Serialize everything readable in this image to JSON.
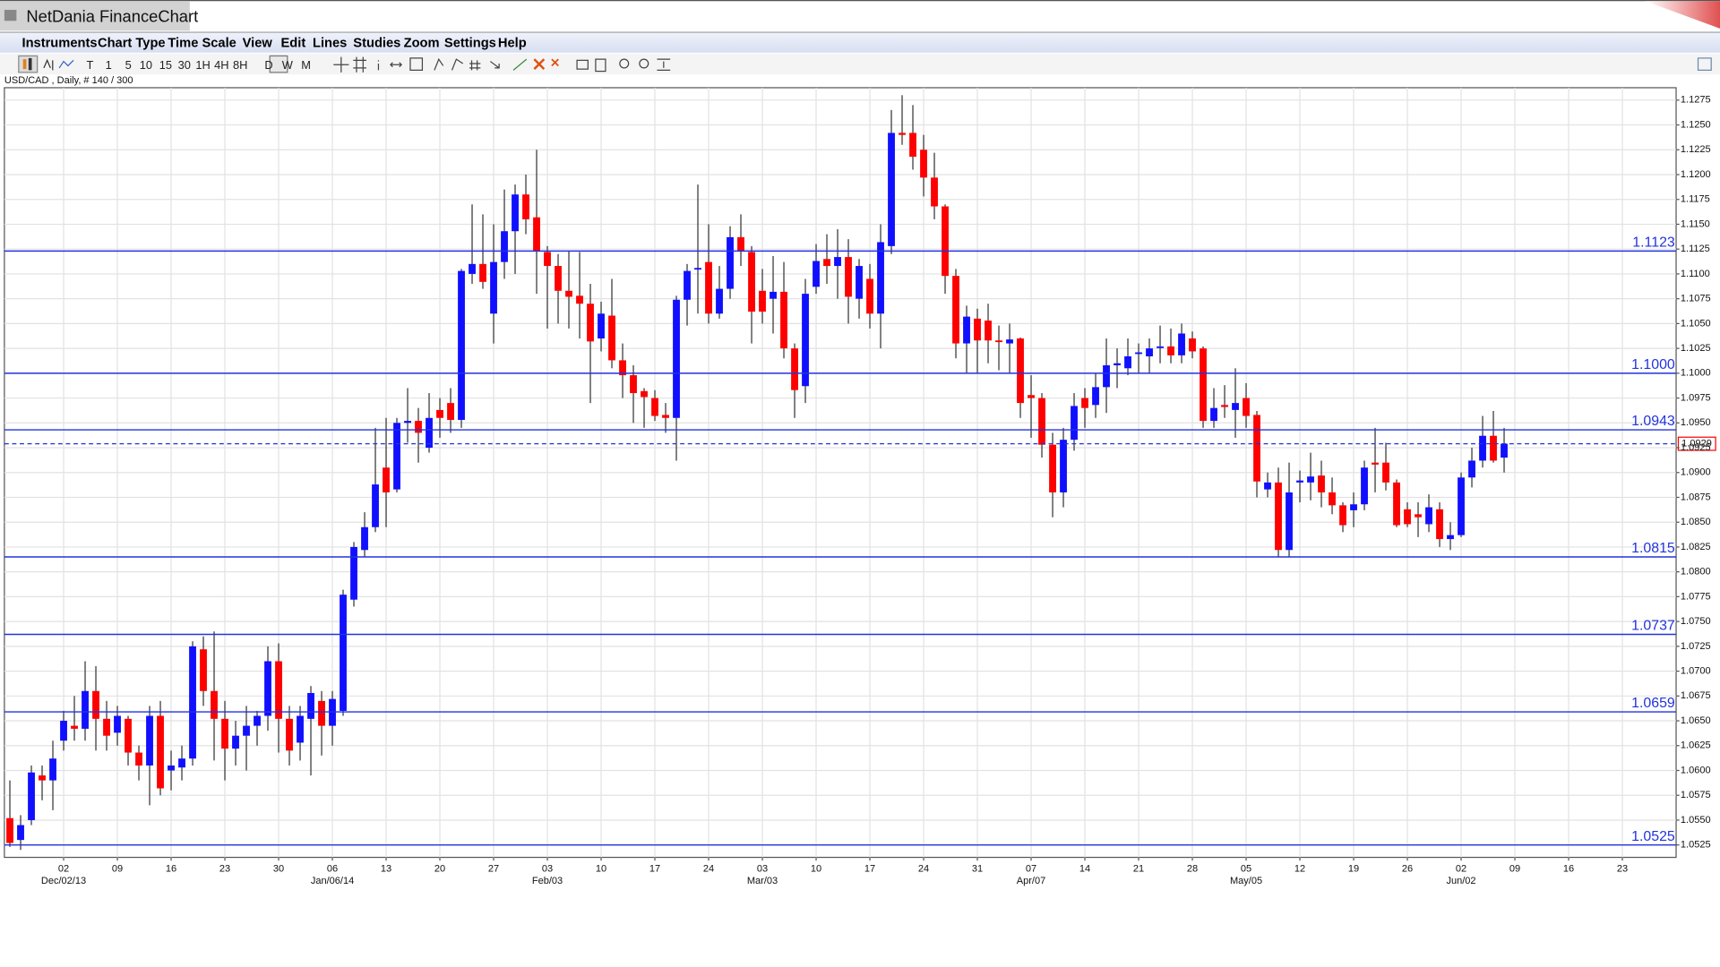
{
  "app": {
    "title": "NetDania FinanceChart",
    "menu": [
      "Instruments",
      "Chart Type",
      "Time Scale",
      "View",
      "Edit",
      "Lines",
      "Studies",
      "Zoom",
      "Settings",
      "Help"
    ],
    "toolbar": [
      "T",
      "1",
      "5",
      "10",
      "15",
      "30",
      "1H",
      "4H",
      "8H",
      "D",
      "W",
      "M"
    ]
  },
  "chart_data": {
    "type": "candlestick",
    "title": "USD/CAD , Daily, # 140 / 300",
    "up_color": "#1010ff",
    "down_color": "#ff0000",
    "level_color": "#2233dd",
    "grid": true,
    "ylim": [
      1.05125,
      1.12875
    ],
    "yticks": [
      1.0525,
      {
        "value": 1.055,
        "label": "1.0550"
      },
      1.0575,
      {
        "value": 1.06,
        "label": "1.0600"
      },
      1.0625,
      {
        "value": 1.065,
        "label": "1.0650"
      },
      1.0675,
      {
        "value": 1.07,
        "label": "1.0700"
      },
      1.0725,
      {
        "value": 1.075,
        "label": "1.0750"
      },
      1.0775,
      {
        "value": 1.08,
        "label": "1.0800"
      },
      1.0825,
      {
        "value": 1.085,
        "label": "1.0850"
      },
      1.0875,
      {
        "value": 1.09,
        "label": "1.0900"
      },
      1.0925,
      {
        "value": 1.095,
        "label": "1.0950"
      },
      1.0975,
      {
        "value": 1.1,
        "label": "1.1000"
      },
      1.1025,
      {
        "value": 1.105,
        "label": "1.1050"
      },
      1.1075,
      {
        "value": 1.11,
        "label": "1.1100"
      },
      1.1125,
      {
        "value": 1.115,
        "label": "1.1150"
      },
      1.1175,
      {
        "value": 1.12,
        "label": "1.1200"
      },
      1.1225,
      {
        "value": 1.125,
        "label": "1.1250"
      },
      1.1275
    ],
    "levels": [
      1.1123,
      {
        "value": 1.1,
        "label": "1.1000"
      },
      1.0943,
      1.0815,
      1.0737,
      1.0659,
      1.0525
    ],
    "last_price": 1.0929,
    "categories": [
      null,
      null,
      null,
      null,
      null,
      "02",
      null,
      null,
      null,
      null,
      "09",
      null,
      null,
      null,
      null,
      "16",
      null,
      null,
      null,
      null,
      "23",
      null,
      null,
      null,
      null,
      "30",
      null,
      null,
      null,
      null,
      "06",
      null,
      null,
      null,
      null,
      "13",
      null,
      null,
      null,
      null,
      "20",
      null,
      null,
      null,
      null,
      "27",
      null,
      null,
      null,
      null,
      "03",
      null,
      null,
      null,
      null,
      "10",
      null,
      null,
      null,
      null,
      "17",
      null,
      null,
      null,
      null,
      "24",
      null,
      null,
      null,
      null,
      "03",
      null,
      null,
      null,
      null,
      "10",
      null,
      null,
      null,
      null,
      "17",
      null,
      null,
      null,
      null,
      "24",
      null,
      null,
      null,
      null,
      "31",
      null,
      null,
      null,
      null,
      "07",
      null,
      null,
      null,
      null,
      "14",
      null,
      null,
      null,
      null,
      "21",
      null,
      null,
      null,
      null,
      "28",
      null,
      null,
      null,
      null,
      "05",
      null,
      null,
      null,
      null,
      "12",
      null,
      null,
      null,
      null,
      "19",
      null,
      null,
      null,
      null,
      "26",
      null,
      null,
      null,
      null,
      "02",
      null,
      null,
      null,
      null,
      "09",
      null,
      null,
      null,
      null,
      "16",
      null,
      null,
      null,
      null,
      "23",
      null,
      null,
      null,
      null
    ],
    "category_sublabels": [
      null,
      null,
      null,
      null,
      null,
      "Dec/02/13",
      null,
      null,
      null,
      null,
      null,
      null,
      null,
      null,
      null,
      null,
      null,
      null,
      null,
      null,
      null,
      null,
      null,
      null,
      null,
      null,
      null,
      null,
      null,
      null,
      "Jan/06/14",
      null,
      null,
      null,
      null,
      null,
      null,
      null,
      null,
      null,
      null,
      null,
      null,
      null,
      null,
      null,
      null,
      null,
      null,
      null,
      "Feb/03",
      null,
      null,
      null,
      null,
      null,
      null,
      null,
      null,
      null,
      null,
      null,
      null,
      null,
      null,
      null,
      null,
      null,
      null,
      null,
      "Mar/03",
      null,
      null,
      null,
      null,
      null,
      null,
      null,
      null,
      null,
      null,
      null,
      null,
      null,
      null,
      null,
      null,
      null,
      null,
      null,
      null,
      null,
      null,
      null,
      null,
      "Apr/07",
      null,
      null,
      null,
      null,
      null,
      null,
      null,
      null,
      null,
      null,
      null,
      null,
      null,
      null,
      null,
      null,
      null,
      null,
      null,
      "May/05",
      null,
      null,
      null,
      null,
      null,
      null,
      null,
      null,
      null,
      null,
      null,
      null,
      null,
      null,
      null,
      null,
      null,
      null,
      null,
      "Jun/02",
      null,
      null,
      null,
      null,
      null,
      null,
      null,
      null,
      null,
      null,
      null,
      null,
      null,
      null,
      null,
      null,
      null,
      null,
      null
    ],
    "ohlc": [
      [
        1.0552,
        1.059,
        1.0523,
        1.0527
      ],
      [
        1.053,
        1.0555,
        1.052,
        1.0545
      ],
      [
        1.055,
        1.0605,
        1.0545,
        1.0598
      ],
      [
        1.0595,
        1.0605,
        1.057,
        1.059
      ],
      [
        1.059,
        1.063,
        1.056,
        1.0612
      ],
      [
        1.063,
        1.066,
        1.062,
        1.065
      ],
      [
        1.0645,
        1.0675,
        1.063,
        1.0642
      ],
      [
        1.0642,
        1.071,
        1.063,
        1.068
      ],
      [
        1.068,
        1.0705,
        1.062,
        1.0652
      ],
      [
        1.0652,
        1.067,
        1.062,
        1.0635
      ],
      [
        1.0638,
        1.0665,
        1.0625,
        1.0655
      ],
      [
        1.0652,
        1.0655,
        1.0605,
        1.0618
      ],
      [
        1.0618,
        1.0625,
        1.059,
        1.0605
      ],
      [
        1.0605,
        1.0665,
        1.0565,
        1.0655
      ],
      [
        1.0655,
        1.067,
        1.0575,
        1.0582
      ],
      [
        1.06,
        1.062,
        1.058,
        1.0605
      ],
      [
        1.0603,
        1.0625,
        1.059,
        1.0612
      ],
      [
        1.0612,
        1.073,
        1.0605,
        1.0725
      ],
      [
        1.0722,
        1.0735,
        1.0665,
        1.068
      ],
      [
        1.068,
        1.074,
        1.061,
        1.0652
      ],
      [
        1.0652,
        1.067,
        1.059,
        1.0622
      ],
      [
        1.0622,
        1.065,
        1.0605,
        1.0635
      ],
      [
        1.0635,
        1.0665,
        1.06,
        1.0645
      ],
      [
        1.0645,
        1.066,
        1.0625,
        1.0655
      ],
      [
        1.0655,
        1.0725,
        1.064,
        1.071
      ],
      [
        1.071,
        1.0728,
        1.0618,
        1.0652
      ],
      [
        1.0652,
        1.0665,
        1.0605,
        1.062
      ],
      [
        1.0628,
        1.0665,
        1.061,
        1.0655
      ],
      [
        1.0652,
        1.0685,
        1.0595,
        1.0678
      ],
      [
        1.067,
        1.068,
        1.0615,
        1.0645
      ],
      [
        1.0645,
        1.068,
        1.0625,
        1.0672
      ],
      [
        1.066,
        1.0782,
        1.0655,
        1.0777
      ],
      [
        1.0772,
        1.083,
        1.0765,
        1.0825
      ],
      [
        1.0822,
        1.086,
        1.0815,
        1.0845
      ],
      [
        1.0845,
        1.0945,
        1.084,
        1.0888
      ],
      [
        1.0905,
        1.0955,
        1.0845,
        1.088
      ],
      [
        1.0883,
        1.0955,
        1.088,
        1.095
      ],
      [
        1.095,
        1.0985,
        1.093,
        1.0952
      ],
      [
        1.0952,
        1.0965,
        1.091,
        1.094
      ],
      [
        1.0925,
        1.098,
        1.092,
        1.0955
      ],
      [
        1.0963,
        1.0975,
        1.0935,
        1.0955
      ],
      [
        1.097,
        1.0985,
        1.094,
        1.0953
      ],
      [
        1.0953,
        1.1105,
        1.0945,
        1.1103
      ],
      [
        1.11,
        1.117,
        1.109,
        1.111
      ],
      [
        1.111,
        1.116,
        1.1085,
        1.1092
      ],
      [
        1.106,
        1.115,
        1.103,
        1.1112
      ],
      [
        1.1112,
        1.1185,
        1.1095,
        1.1143
      ],
      [
        1.1143,
        1.119,
        1.11,
        1.118
      ],
      [
        1.118,
        1.12,
        1.114,
        1.1155
      ],
      [
        1.1157,
        1.1225,
        1.108,
        1.1123
      ],
      [
        1.1122,
        1.1128,
        1.1045,
        1.1108
      ],
      [
        1.1108,
        1.112,
        1.105,
        1.1083
      ],
      [
        1.1083,
        1.1123,
        1.1045,
        1.1077
      ],
      [
        1.1078,
        1.1122,
        1.1035,
        1.107
      ],
      [
        1.107,
        1.109,
        1.097,
        1.1032
      ],
      [
        1.1035,
        1.1072,
        1.1022,
        1.106
      ],
      [
        1.1058,
        1.1095,
        1.1005,
        1.1013
      ],
      [
        1.1013,
        1.103,
        1.0975,
        1.0998
      ],
      [
        1.0998,
        1.1008,
        1.095,
        1.098
      ],
      [
        1.0982,
        1.0985,
        1.0945,
        1.0976
      ],
      [
        1.0975,
        1.0983,
        1.0952,
        1.0957
      ],
      [
        1.0958,
        1.097,
        1.094,
        1.0955
      ],
      [
        1.0955,
        1.1078,
        1.0912,
        1.1074
      ],
      [
        1.1074,
        1.111,
        1.1048,
        1.1103
      ],
      [
        1.1105,
        1.119,
        1.106,
        1.1106
      ],
      [
        1.1112,
        1.115,
        1.105,
        1.106
      ],
      [
        1.106,
        1.1108,
        1.1055,
        1.1085
      ],
      [
        1.1085,
        1.1148,
        1.1075,
        1.1137
      ],
      [
        1.1137,
        1.116,
        1.1108,
        1.1123
      ],
      [
        1.1122,
        1.1128,
        1.103,
        1.1062
      ],
      [
        1.1083,
        1.1105,
        1.105,
        1.1062
      ],
      [
        1.1075,
        1.1118,
        1.104,
        1.1082
      ],
      [
        1.1082,
        1.1112,
        1.1015,
        1.1025
      ],
      [
        1.1025,
        1.103,
        1.0955,
        1.0983
      ],
      [
        1.0987,
        1.1095,
        1.097,
        1.108
      ],
      [
        1.1087,
        1.113,
        1.108,
        1.1113
      ],
      [
        1.1115,
        1.114,
        1.109,
        1.1108
      ],
      [
        1.1108,
        1.1145,
        1.1075,
        1.1117
      ],
      [
        1.1117,
        1.1135,
        1.105,
        1.1077
      ],
      [
        1.1075,
        1.1115,
        1.1055,
        1.1108
      ],
      [
        1.1095,
        1.111,
        1.1045,
        1.106
      ],
      [
        1.106,
        1.115,
        1.1025,
        1.1132
      ],
      [
        1.1128,
        1.1265,
        1.112,
        1.1242
      ],
      [
        1.1242,
        1.128,
        1.123,
        1.124
      ],
      [
        1.1242,
        1.127,
        1.1205,
        1.1218
      ],
      [
        1.1225,
        1.124,
        1.1178,
        1.1197
      ],
      [
        1.1197,
        1.1222,
        1.1155,
        1.1168
      ],
      [
        1.1168,
        1.117,
        1.108,
        1.1098
      ],
      [
        1.1098,
        1.1105,
        1.1015,
        1.103
      ],
      [
        1.103,
        1.1068,
        1.1,
        1.1057
      ],
      [
        1.1055,
        1.1065,
        1.1,
        1.1033
      ],
      [
        1.1053,
        1.107,
        1.101,
        1.1033
      ],
      [
        1.1033,
        1.1048,
        1.1003,
        1.1032
      ],
      [
        1.103,
        1.105,
        1.1,
        1.1034
      ],
      [
        1.1035,
        1.1036,
        1.0955,
        1.097
      ],
      [
        1.0978,
        1.0998,
        1.0935,
        1.0975
      ],
      [
        1.0975,
        1.098,
        1.0915,
        1.0928
      ],
      [
        1.0928,
        1.094,
        1.0855,
        1.088
      ],
      [
        1.088,
        1.0945,
        1.0865,
        1.0933
      ],
      [
        1.0933,
        1.098,
        1.0922,
        1.0967
      ],
      [
        1.0975,
        1.0985,
        1.0945,
        1.0965
      ],
      [
        1.0968,
        1.1,
        1.0955,
        1.0986
      ],
      [
        1.0986,
        1.1035,
        1.096,
        1.1008
      ],
      [
        1.1008,
        1.1025,
        1.0985,
        1.101
      ],
      [
        1.1005,
        1.1035,
        1.0998,
        1.1017
      ],
      [
        1.102,
        1.103,
        1.1,
        1.1021
      ],
      [
        1.1017,
        1.1035,
        1.1,
        1.1025
      ],
      [
        1.1026,
        1.1048,
        1.101,
        1.1027
      ],
      [
        1.1027,
        1.1045,
        1.101,
        1.1018
      ],
      [
        1.1018,
        1.105,
        1.101,
        1.104
      ],
      [
        1.1035,
        1.1042,
        1.1015,
        1.1022
      ],
      [
        1.1025,
        1.1027,
        1.0945,
        1.0952
      ],
      [
        1.0952,
        1.0985,
        1.0945,
        1.0965
      ],
      [
        1.0968,
        1.0988,
        1.0955,
        1.0966
      ],
      [
        1.0963,
        1.1005,
        1.0935,
        1.097
      ],
      [
        1.0975,
        1.099,
        1.0945,
        1.0957
      ],
      [
        1.0958,
        1.0962,
        1.0875,
        1.0891
      ],
      [
        1.0883,
        1.09,
        1.0875,
        1.089
      ],
      [
        1.089,
        1.0905,
        1.0815,
        1.0822
      ],
      [
        1.0822,
        1.091,
        1.0815,
        1.088
      ],
      [
        1.089,
        1.0902,
        1.087,
        1.0892
      ],
      [
        1.089,
        1.092,
        1.0872,
        1.0896
      ],
      [
        1.0897,
        1.0912,
        1.0865,
        1.088
      ],
      [
        1.088,
        1.0895,
        1.0858,
        1.0867
      ],
      [
        1.0867,
        1.087,
        1.084,
        1.0847
      ],
      [
        1.0862,
        1.088,
        1.0845,
        1.0868
      ],
      [
        1.0868,
        1.0912,
        1.0862,
        1.0905
      ],
      [
        1.091,
        1.0945,
        1.088,
        1.0908
      ],
      [
        1.091,
        1.093,
        1.0882,
        1.089
      ],
      [
        1.089,
        1.0893,
        1.0845,
        1.0847
      ],
      [
        1.0863,
        1.087,
        1.0845,
        1.0848
      ],
      [
        1.0858,
        1.087,
        1.0835,
        1.0855
      ],
      [
        1.0848,
        1.0878,
        1.084,
        1.0865
      ],
      [
        1.0863,
        1.087,
        1.0825,
        1.0833
      ],
      [
        1.0833,
        1.085,
        1.0822,
        1.0837
      ],
      [
        1.0837,
        1.09,
        1.0835,
        1.0895
      ],
      [
        1.0895,
        1.0925,
        1.0885,
        1.0912
      ],
      [
        1.0912,
        1.0957,
        1.0905,
        1.0937
      ],
      [
        1.0937,
        1.0962,
        1.091,
        1.0912
      ],
      [
        1.0915,
        1.0945,
        1.09,
        1.0929
      ],
      null,
      null,
      null,
      null,
      null,
      null,
      null,
      null,
      null,
      null,
      null,
      null,
      null,
      null,
      null
    ]
  }
}
